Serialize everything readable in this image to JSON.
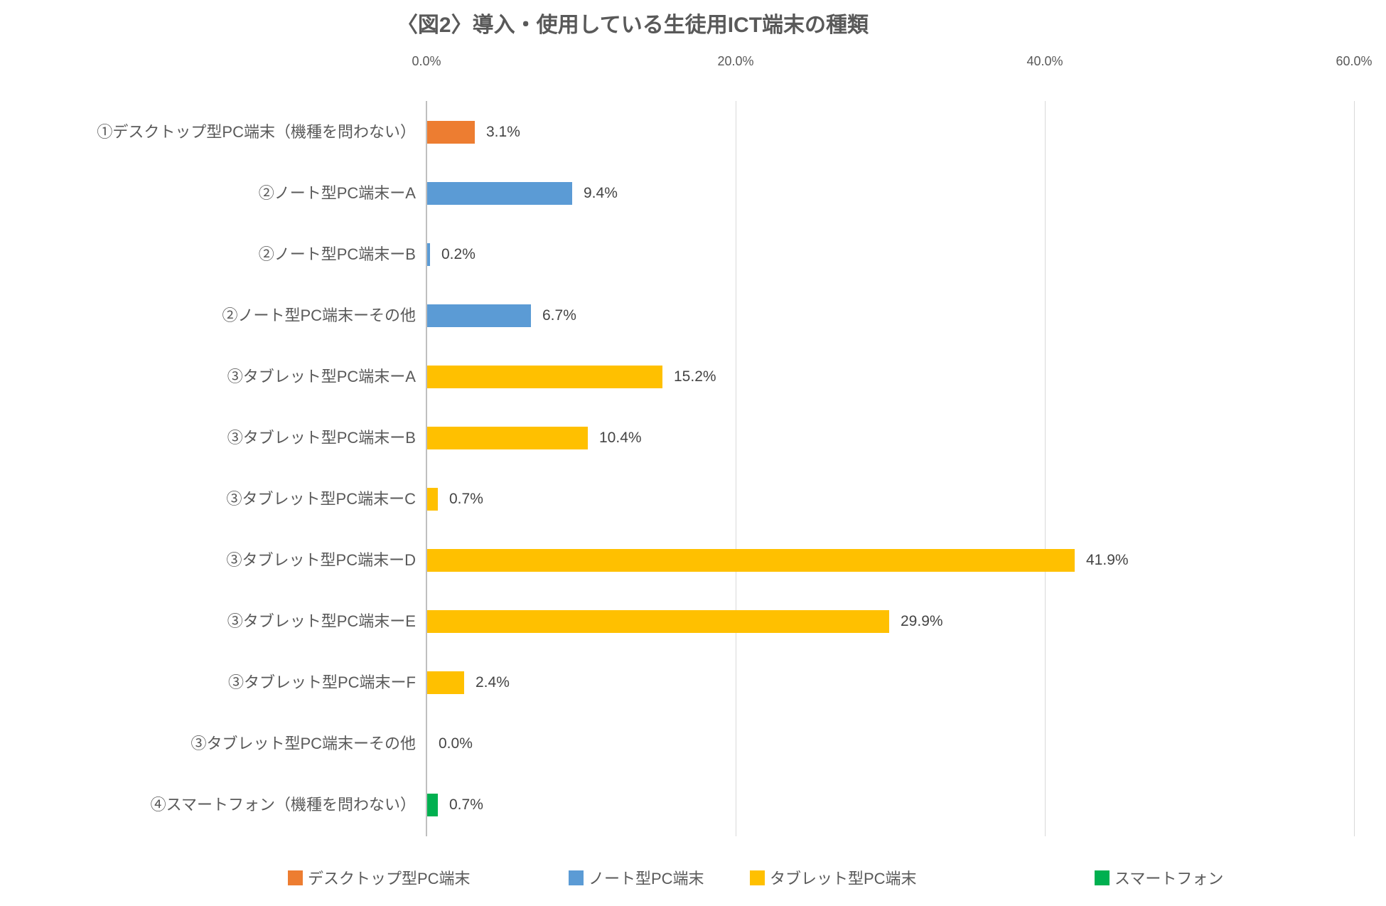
{
  "chart_data": {
    "type": "bar",
    "orientation": "horizontal",
    "title": "〈図2〉導入・使用している生徒用ICT端末の種類",
    "xlabel": "",
    "ylabel": "",
    "xlim": [
      0,
      60
    ],
    "grid": true,
    "legend_position": "bottom",
    "x_ticks": [
      {
        "value": 0,
        "label": "0.0%"
      },
      {
        "value": 20,
        "label": "20.0%"
      },
      {
        "value": 40,
        "label": "40.0%"
      },
      {
        "value": 60,
        "label": "60.0%"
      }
    ],
    "categories": [
      "①デスクトップ型PC端末（機種を問わない）",
      "②ノート型PC端末ーA",
      "②ノート型PC端末ーB",
      "②ノート型PC端末ーその他",
      "③タブレット型PC端末ーA",
      "③タブレット型PC端末ーB",
      "③タブレット型PC端末ーC",
      "③タブレット型PC端末ーD",
      "③タブレット型PC端末ーE",
      "③タブレット型PC端末ーF",
      "③タブレット型PC端末ーその他",
      "④スマートフォン（機種を問わない）"
    ],
    "values": [
      3.1,
      9.4,
      0.2,
      6.7,
      15.2,
      10.4,
      0.7,
      41.9,
      29.9,
      2.4,
      0.0,
      0.7
    ],
    "value_labels": [
      "3.1%",
      "9.4%",
      "0.2%",
      "6.7%",
      "15.2%",
      "10.4%",
      "0.7%",
      "41.9%",
      "29.9%",
      "2.4%",
      "0.0%",
      "0.7%"
    ],
    "bar_color_keys": [
      "desktop",
      "note",
      "note",
      "note",
      "tablet",
      "tablet",
      "tablet",
      "tablet",
      "tablet",
      "tablet",
      "tablet",
      "smartphone"
    ],
    "colors": {
      "desktop": "#ED7D31",
      "note": "#5B9BD5",
      "tablet": "#FFC000",
      "smartphone": "#00B050",
      "gridline": "#D9D9D9",
      "axis_line": "#BFBFBF",
      "title_text": "#595959",
      "label_text": "#595959",
      "value_text": "#444444"
    },
    "legend": [
      {
        "key": "desktop",
        "label": "デスクトップ型PC端末"
      },
      {
        "key": "note",
        "label": "ノート型PC端末"
      },
      {
        "key": "tablet",
        "label": "タブレット型PC端末"
      },
      {
        "key": "smartphone",
        "label": "スマートフォン"
      }
    ]
  }
}
